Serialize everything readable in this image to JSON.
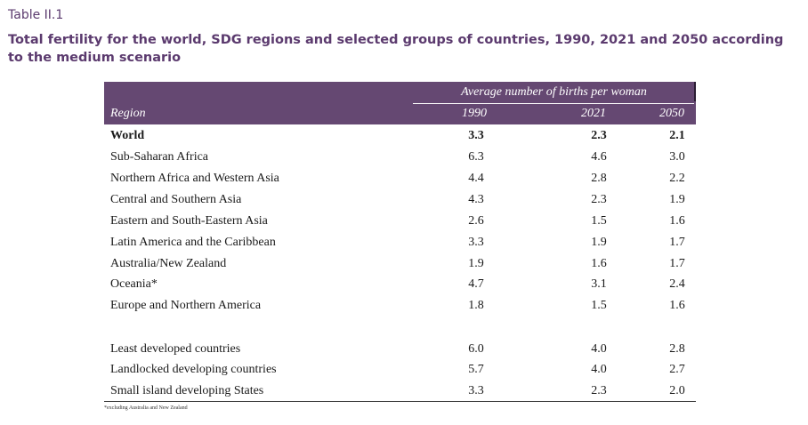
{
  "table_label": "Table II.1",
  "title": "Total fertility for the world, SDG regions and selected groups of countries, 1990, 2021 and 2050 according to the medium scenario",
  "header": {
    "span_label": "Average number of births per woman",
    "region": "Region",
    "col_1990": "1990",
    "col_2021": "2021",
    "col_2050": "2050"
  },
  "rows": [
    {
      "region": "World",
      "v1990": "3.3",
      "v2021": "2.3",
      "v2050": "2.1"
    },
    {
      "region": "Sub-Saharan Africa",
      "v1990": "6.3",
      "v2021": "4.6",
      "v2050": "3.0"
    },
    {
      "region": "Northern Africa and Western Asia",
      "v1990": "4.4",
      "v2021": "2.8",
      "v2050": "2.2"
    },
    {
      "region": "Central and Southern Asia",
      "v1990": "4.3",
      "v2021": "2.3",
      "v2050": "1.9"
    },
    {
      "region": "Eastern and South-Eastern Asia",
      "v1990": "2.6",
      "v2021": "1.5",
      "v2050": "1.6"
    },
    {
      "region": "Latin America and the Caribbean",
      "v1990": "3.3",
      "v2021": "1.9",
      "v2050": "1.7"
    },
    {
      "region": "Australia/New Zealand",
      "v1990": "1.9",
      "v2021": "1.6",
      "v2050": "1.7"
    },
    {
      "region": "Oceania*",
      "v1990": "4.7",
      "v2021": "3.1",
      "v2050": "2.4"
    },
    {
      "region": "Europe and Northern America",
      "v1990": "1.8",
      "v2021": "1.5",
      "v2050": "1.6"
    },
    {
      "region": "Least developed countries",
      "v1990": "6.0",
      "v2021": "4.0",
      "v2050": "2.8"
    },
    {
      "region": "Landlocked developing countries",
      "v1990": "5.7",
      "v2021": "4.0",
      "v2050": "2.7"
    },
    {
      "region": "Small island developing States",
      "v1990": "3.3",
      "v2021": "2.3",
      "v2050": "2.0"
    }
  ],
  "footnote": "*excluding Australia and New Zealand"
}
